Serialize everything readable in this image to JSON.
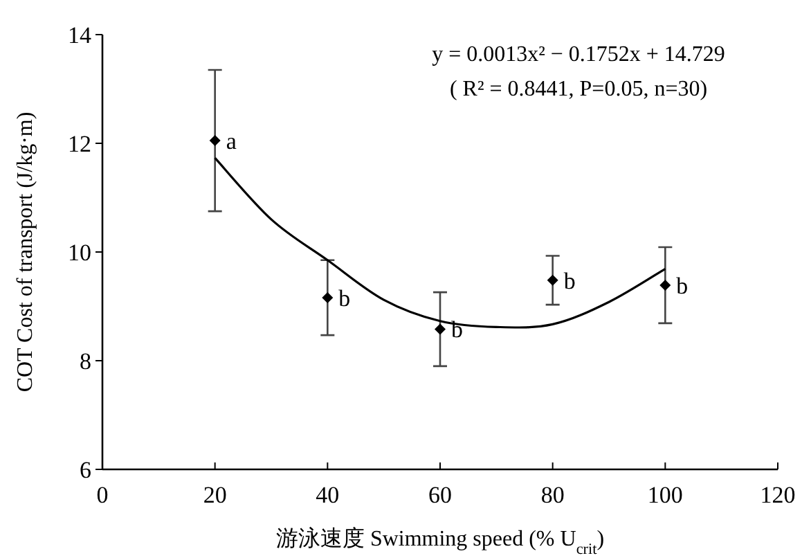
{
  "chart_data": {
    "type": "scatter",
    "xlabel": "游泳速度 Swimming speed (% U$_{crit}$)",
    "ylabel": "COT Cost of transport (J/kg·m)",
    "xlim": [
      0,
      120
    ],
    "xticks": [
      0,
      20,
      40,
      60,
      80,
      100,
      120
    ],
    "ylim": [
      6,
      14
    ],
    "yticks": [
      6,
      8,
      10,
      12,
      14
    ],
    "grid": false,
    "series": [
      {
        "marker": "diamond",
        "color": "#000000",
        "x": [
          20,
          40,
          60,
          80,
          100
        ],
        "values": [
          12.05,
          9.16,
          8.58,
          9.48,
          9.39
        ],
        "errors": [
          1.3,
          0.69,
          0.68,
          0.45,
          0.7
        ]
      },
      {
        "type": "line",
        "marker": "none",
        "color": "#000000",
        "x": [
          20,
          30,
          40,
          50,
          60,
          70,
          80,
          90,
          100
        ],
        "values": [
          11.73,
          10.6,
          9.85,
          9.12,
          8.73,
          8.62,
          8.67,
          9.08,
          9.69
        ]
      }
    ],
    "annotations": [
      "y = 0.0013x² − 0.1752x + 14.729",
      "( R² = 0.8441, P=0.05, n=30)",
      {
        "text": "a",
        "x": 20,
        "y": 12.05
      },
      {
        "text": "b",
        "x": 40,
        "y": 9.16
      },
      {
        "text": "b",
        "x": 60,
        "y": 8.58
      },
      {
        "text": "b",
        "x": 80,
        "y": 9.48
      },
      {
        "text": "b",
        "x": 100,
        "y": 9.39
      }
    ]
  }
}
